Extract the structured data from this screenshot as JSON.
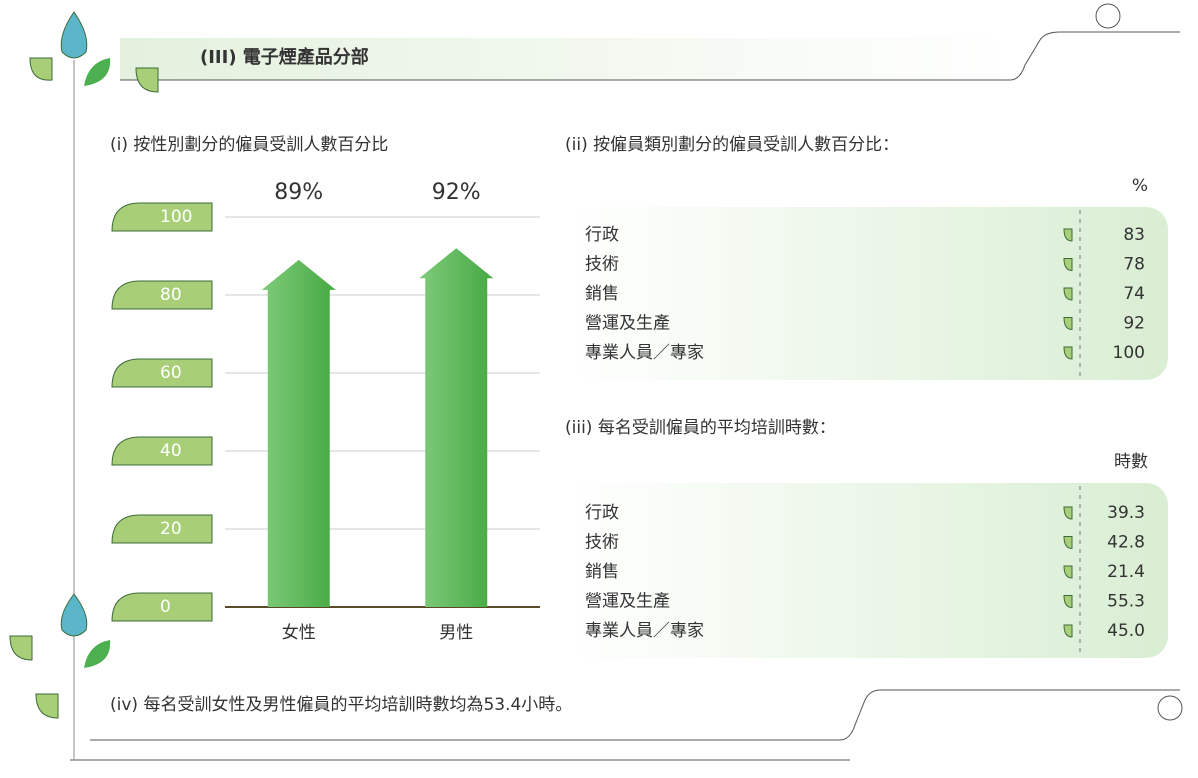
{
  "section_title": "(III) 電子煙產品分部",
  "chart_data": {
    "type": "bar",
    "title": "(i) 按性別劃分的僱員受訓人數百分比",
    "categories": [
      "女性",
      "男性"
    ],
    "values": [
      89,
      92
    ],
    "value_labels": [
      "89%",
      "92%"
    ],
    "ylim": [
      0,
      100
    ],
    "yticks": [
      0,
      20,
      40,
      60,
      80,
      100
    ],
    "color": "#5cb85c",
    "grid": true
  },
  "table_category": {
    "title": "(ii) 按僱員類別劃分的僱員受訓人數百分比：",
    "unit": "%",
    "rows": [
      [
        "行政",
        "83"
      ],
      [
        "技術",
        "78"
      ],
      [
        "銷售",
        "74"
      ],
      [
        "營運及生產",
        "92"
      ],
      [
        "專業人員／專家",
        "100"
      ]
    ]
  },
  "table_hours": {
    "title": "(iii) 每名受訓僱員的平均培訓時數：",
    "unit": "時數",
    "rows": [
      [
        "行政",
        "39.3"
      ],
      [
        "技術",
        "42.8"
      ],
      [
        "銷售",
        "21.4"
      ],
      [
        "營運及生產",
        "55.3"
      ],
      [
        "專業人員／專家",
        "45.0"
      ]
    ]
  },
  "note": "(iv) 每名受訓女性及男性僱員的平均培訓時數均為53.4小時。"
}
